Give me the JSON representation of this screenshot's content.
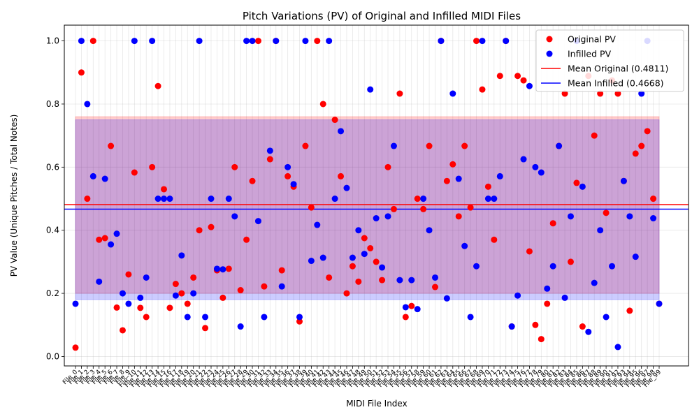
{
  "chart_data": {
    "type": "scatter",
    "title": "Pitch Variations (PV) of Original and Infilled MIDI Files",
    "xlabel": "MIDI File Index",
    "ylabel": "PV Value (Unique Pitches / Total Notes)",
    "categories": [
      "File_0",
      "File_1",
      "File_2",
      "File_3",
      "File_4",
      "File_5",
      "File_6",
      "File_7",
      "File_8",
      "File_9",
      "File_10",
      "File_11",
      "File_12",
      "File_13",
      "File_14",
      "File_15",
      "File_16",
      "File_17",
      "File_18",
      "File_19",
      "File_20",
      "File_21",
      "File_22",
      "File_23",
      "File_24",
      "File_25",
      "File_26",
      "File_27",
      "File_28",
      "File_29",
      "File_30",
      "File_31",
      "File_32",
      "File_33",
      "File_34",
      "File_35",
      "File_36",
      "File_37",
      "File_38",
      "File_39",
      "File_40",
      "File_41",
      "File_42",
      "File_43",
      "File_44",
      "File_45",
      "File_46",
      "File_47",
      "File_48",
      "File_49",
      "File_50",
      "File_51",
      "File_52",
      "File_53",
      "File_54",
      "File_55",
      "File_56",
      "File_57",
      "File_58",
      "File_59",
      "File_60",
      "File_61",
      "File_62",
      "File_63",
      "File_64",
      "File_65",
      "File_66",
      "File_67",
      "File_68",
      "File_69",
      "File_70",
      "File_71",
      "File_72",
      "File_73",
      "File_74",
      "File_75",
      "File_76",
      "File_77",
      "File_78",
      "File_79",
      "File_80",
      "File_81",
      "File_82",
      "File_83",
      "File_84",
      "File_85",
      "File_86",
      "File_87",
      "File_88",
      "File_89",
      "File_90",
      "File_91",
      "File_92",
      "File_93",
      "File_94",
      "File_95",
      "File_96",
      "File_97",
      "File_98",
      "File_99"
    ],
    "ylim": [
      -0.03,
      1.05
    ],
    "yticks": [
      "0.0",
      "0.2",
      "0.4",
      "0.6",
      "0.8",
      "1.0"
    ],
    "grid": true,
    "legend_position": "top-right",
    "series": [
      {
        "name": "Original PV",
        "color": "#ff0000",
        "values": [
          0.028,
          0.9,
          0.5,
          1.0,
          0.37,
          0.375,
          0.667,
          0.155,
          0.083,
          0.26,
          0.583,
          0.154,
          0.125,
          0.6,
          0.857,
          0.53,
          0.154,
          0.23,
          0.2,
          0.167,
          0.25,
          0.4,
          0.09,
          0.41,
          0.273,
          0.186,
          0.278,
          0.6,
          0.21,
          0.37,
          0.556,
          1.0,
          0.222,
          0.625,
          1.0,
          0.273,
          0.571,
          0.538,
          0.111,
          0.667,
          0.472,
          1.0,
          0.8,
          0.25,
          0.75,
          0.571,
          0.2,
          0.286,
          0.237,
          0.375,
          0.343,
          0.3,
          0.242,
          0.6,
          0.467,
          0.833,
          0.125,
          0.16,
          0.5,
          0.467,
          0.667,
          0.22,
          1.0,
          0.556,
          0.609,
          0.444,
          0.667,
          0.472,
          1.0,
          0.846,
          0.538,
          0.37,
          0.889,
          1.0,
          0.095,
          0.889,
          0.875,
          0.333,
          0.1,
          0.055,
          0.167,
          0.422,
          0.667,
          0.833,
          0.3,
          0.55,
          0.095,
          0.889,
          0.7,
          0.833,
          0.455,
          0.875,
          0.833,
          0.556,
          0.145,
          0.643,
          0.667,
          0.714,
          0.5,
          0.167
        ]
      },
      {
        "name": "Infilled PV",
        "color": "#0000ff",
        "values": [
          0.167,
          1.0,
          0.8,
          0.571,
          0.237,
          0.563,
          0.355,
          0.389,
          0.2,
          0.167,
          1.0,
          0.186,
          0.25,
          1.0,
          0.5,
          0.5,
          0.5,
          0.193,
          0.32,
          0.125,
          0.2,
          1.0,
          0.125,
          0.5,
          0.278,
          0.276,
          0.5,
          0.444,
          0.095,
          1.0,
          1.0,
          0.429,
          0.125,
          0.652,
          1.0,
          0.222,
          0.6,
          0.546,
          0.125,
          1.0,
          0.303,
          0.417,
          0.313,
          1.0,
          0.5,
          0.714,
          0.534,
          0.313,
          0.4,
          0.325,
          0.846,
          0.438,
          0.282,
          0.444,
          0.667,
          0.242,
          0.156,
          0.242,
          0.15,
          0.5,
          0.4,
          0.25,
          1.0,
          0.184,
          0.833,
          0.563,
          0.35,
          0.125,
          0.286,
          1.0,
          0.5,
          0.5,
          0.571,
          1.0,
          0.095,
          0.193,
          0.625,
          0.857,
          0.6,
          0.583,
          0.215,
          0.286,
          0.667,
          0.186,
          0.444,
          1.0,
          0.538,
          0.078,
          0.233,
          0.4,
          0.125,
          0.286,
          0.03,
          0.556,
          0.444,
          0.316,
          0.833,
          1.0,
          0.438,
          0.167
        ]
      }
    ],
    "reference_lines": [
      {
        "name": "Mean Original (0.4811)",
        "value": 0.4811,
        "color": "#ff0000"
      },
      {
        "name": "Mean Infilled (0.4668)",
        "value": 0.4668,
        "color": "#0000ff"
      }
    ],
    "shaded_bands": [
      {
        "series": "Original PV",
        "from": 0.2,
        "to": 0.76,
        "x_from": 0,
        "x_to": 99,
        "color": "#ff0000"
      },
      {
        "series": "Infilled PV",
        "from": 0.18,
        "to": 0.75,
        "x_from": 0,
        "x_to": 99,
        "color": "#0000ff"
      }
    ]
  }
}
